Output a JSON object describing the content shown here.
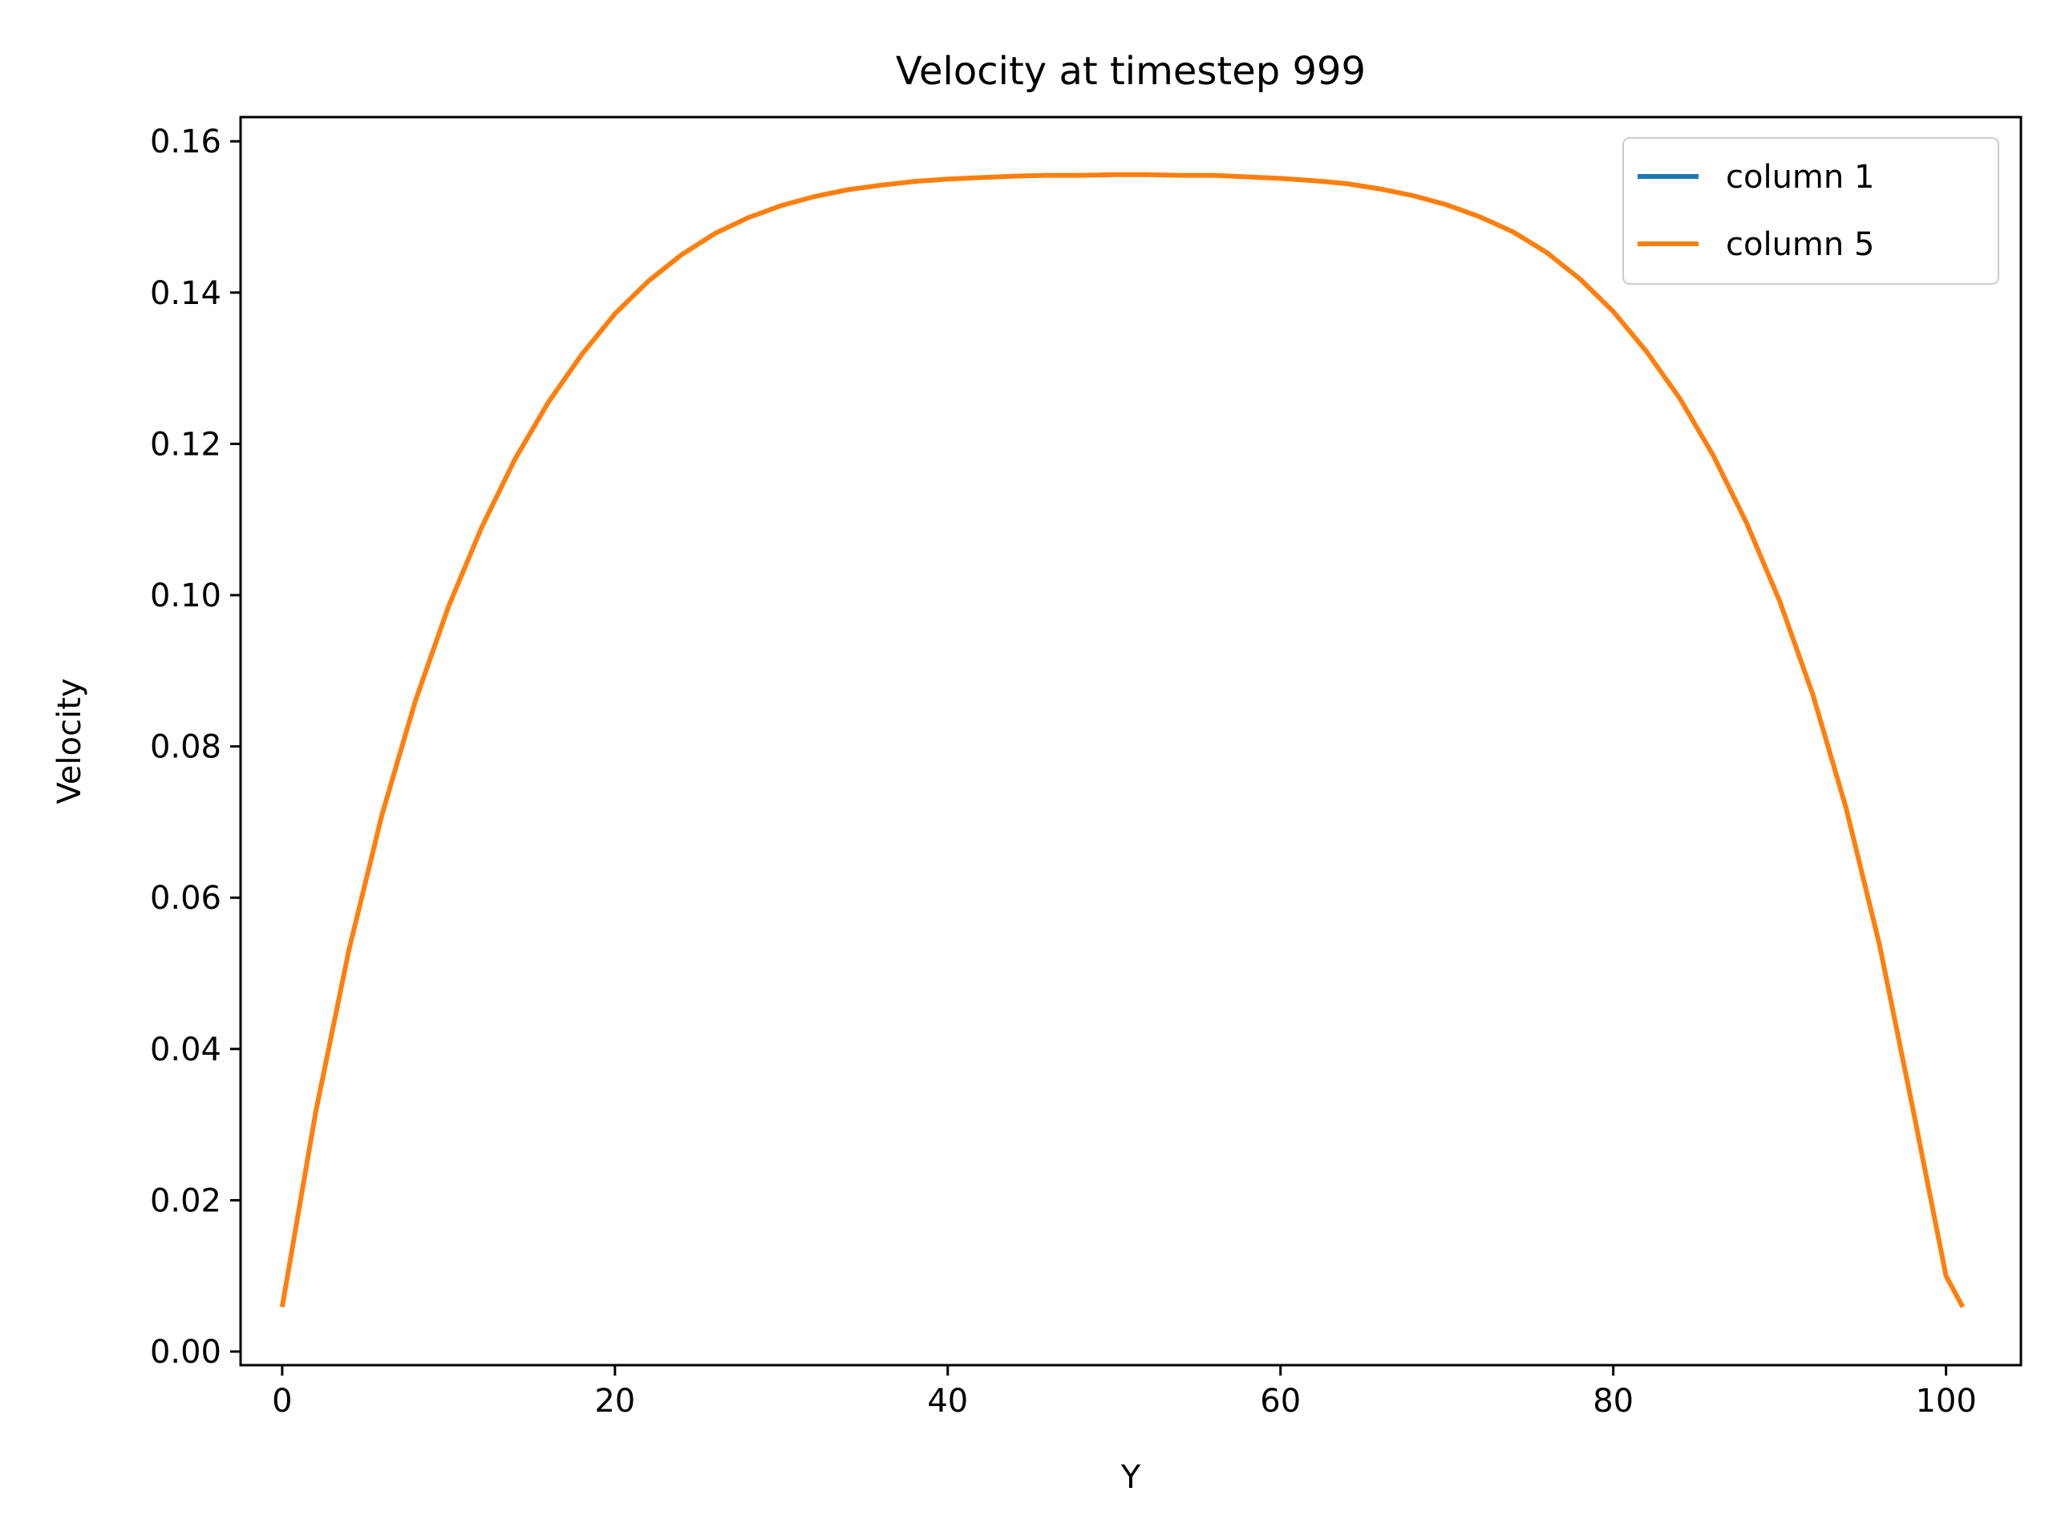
{
  "chart_data": {
    "type": "line",
    "title": "Velocity at timestep 999",
    "xlabel": "Y",
    "ylabel": "Velocity",
    "xlim": [
      -2.5,
      104.5
    ],
    "ylim": [
      -0.0018,
      0.1632
    ],
    "xticks": [
      0,
      20,
      40,
      60,
      80,
      100
    ],
    "xtick_labels": [
      "0",
      "20",
      "40",
      "60",
      "80",
      "100"
    ],
    "yticks": [
      0.0,
      0.02,
      0.04,
      0.06,
      0.08,
      0.1,
      0.12,
      0.14,
      0.16
    ],
    "ytick_labels": [
      "0.00",
      "0.02",
      "0.04",
      "0.06",
      "0.08",
      "0.10",
      "0.12",
      "0.14",
      "0.16"
    ],
    "grid": false,
    "legend": "upper right",
    "x": [
      0,
      2,
      4,
      6,
      8,
      10,
      12,
      14,
      16,
      18,
      20,
      22,
      24,
      26,
      28,
      30,
      32,
      34,
      36,
      38,
      40,
      42,
      44,
      46,
      48,
      50,
      52,
      54,
      56,
      58,
      60,
      62,
      64,
      66,
      68,
      70,
      72,
      74,
      76,
      78,
      80,
      82,
      84,
      86,
      88,
      90,
      92,
      94,
      96,
      98,
      100,
      101
    ],
    "series": [
      {
        "name": "column 1",
        "color": "#1f77b4",
        "values": [
          0.0059,
          0.0315,
          0.053,
          0.071,
          0.086,
          0.0985,
          0.109,
          0.118,
          0.1255,
          0.1318,
          0.1372,
          0.1415,
          0.145,
          0.1478,
          0.1499,
          0.1515,
          0.1527,
          0.1536,
          0.1542,
          0.1547,
          0.155,
          0.1552,
          0.1554,
          0.1555,
          0.1555,
          0.1556,
          0.1556,
          0.1555,
          0.1555,
          0.1553,
          0.1551,
          0.1548,
          0.1544,
          0.1537,
          0.1528,
          0.1516,
          0.15,
          0.148,
          0.1453,
          0.1418,
          0.1375,
          0.1322,
          0.126,
          0.1185,
          0.1096,
          0.0992,
          0.0868,
          0.0718,
          0.0538,
          0.0322,
          0.01,
          0.0059
        ]
      },
      {
        "name": "column 5",
        "color": "#ff7f0e",
        "values": [
          0.0059,
          0.0315,
          0.053,
          0.071,
          0.086,
          0.0985,
          0.109,
          0.118,
          0.1255,
          0.1318,
          0.1372,
          0.1415,
          0.145,
          0.1478,
          0.1499,
          0.1515,
          0.1527,
          0.1536,
          0.1542,
          0.1547,
          0.155,
          0.1552,
          0.1554,
          0.1555,
          0.1555,
          0.1556,
          0.1556,
          0.1555,
          0.1555,
          0.1553,
          0.1551,
          0.1548,
          0.1544,
          0.1537,
          0.1528,
          0.1516,
          0.15,
          0.148,
          0.1453,
          0.1418,
          0.1375,
          0.1322,
          0.126,
          0.1185,
          0.1096,
          0.0992,
          0.0868,
          0.0718,
          0.0538,
          0.0322,
          0.01,
          0.0059
        ]
      }
    ]
  }
}
